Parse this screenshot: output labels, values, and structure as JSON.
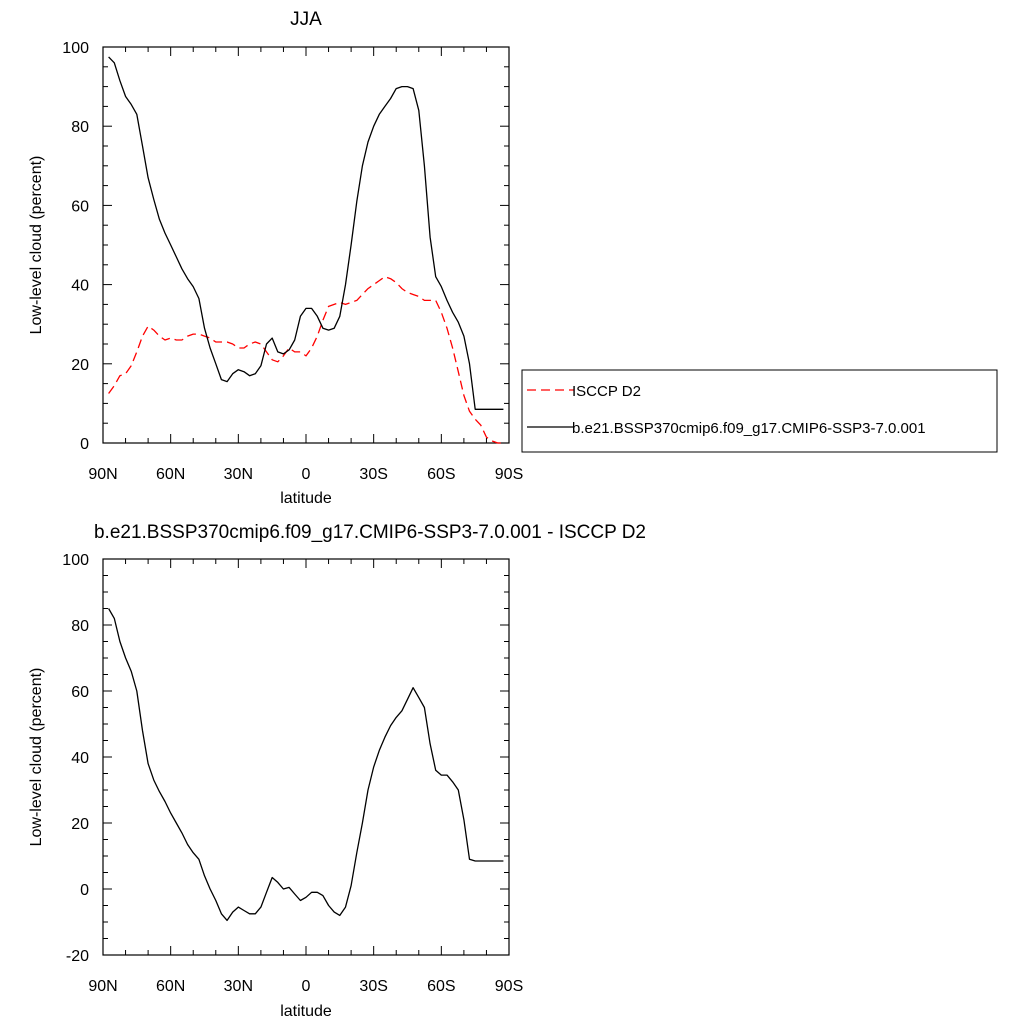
{
  "chart_data": [
    {
      "type": "line",
      "title": "JJA",
      "xlabel": "latitude",
      "ylabel": "Low-level cloud (percent)",
      "xlim": [
        -90,
        90
      ],
      "ylim": [
        0,
        100
      ],
      "x_ticks": [
        {
          "value": -90,
          "label": "90N"
        },
        {
          "value": -60,
          "label": "60N"
        },
        {
          "value": -30,
          "label": "30N"
        },
        {
          "value": 0,
          "label": "0"
        },
        {
          "value": 30,
          "label": "30S"
        },
        {
          "value": 60,
          "label": "60S"
        },
        {
          "value": 90,
          "label": "90S"
        }
      ],
      "y_ticks": [
        0,
        20,
        40,
        60,
        80,
        100
      ],
      "legend_placement": "right",
      "series": [
        {
          "name": "ISCCP D2",
          "style": "dashed",
          "color": "#ff0000",
          "x": [
            -87.5,
            -85,
            -82.5,
            -80,
            -77.5,
            -75,
            -72.5,
            -70,
            -67.5,
            -65,
            -62.5,
            -60,
            -57.5,
            -55,
            -52.5,
            -50,
            -47.5,
            -45,
            -42.5,
            -40,
            -37.5,
            -35,
            -32.5,
            -30,
            -27.5,
            -25,
            -22.5,
            -20,
            -17.5,
            -15,
            -12.5,
            -10,
            -7.5,
            -5,
            -2.5,
            0,
            2.5,
            5,
            7.5,
            10,
            12.5,
            15,
            17.5,
            20,
            22.5,
            25,
            27.5,
            30,
            32.5,
            35,
            37.5,
            40,
            42.5,
            45,
            47.5,
            50,
            52.5,
            55,
            57.5,
            60,
            62.5,
            65,
            67.5,
            70,
            72.5,
            75,
            77.5,
            80,
            82.5,
            85,
            87.5
          ],
          "values": [
            12.5,
            14.5,
            17,
            17.5,
            19.5,
            23,
            27,
            29.5,
            28.5,
            27,
            26,
            26.5,
            26,
            26,
            27,
            27.5,
            27.5,
            27,
            26.5,
            25.5,
            25.5,
            25.5,
            25,
            24,
            24,
            25,
            25.5,
            25,
            23,
            21,
            20.5,
            22,
            24,
            23,
            23,
            22,
            24,
            27,
            31,
            34.5,
            35,
            35.5,
            35,
            35.5,
            36,
            37.5,
            39,
            40,
            41,
            42,
            41.5,
            40.5,
            39,
            38,
            37.5,
            37,
            36,
            36,
            36,
            33,
            29,
            24,
            18,
            12,
            8,
            6,
            4.5,
            1.5,
            0.5,
            0,
            0
          ]
        },
        {
          "name": "b.e21.BSSP370cmip6.f09_g17.CMIP6-SSP3-7.0.001",
          "style": "solid",
          "color": "#000000",
          "x": [
            -87.5,
            -85,
            -82.5,
            -80,
            -77.5,
            -75,
            -72.5,
            -70,
            -67.5,
            -65,
            -62.5,
            -60,
            -57.5,
            -55,
            -52.5,
            -50,
            -47.5,
            -45,
            -42.5,
            -40,
            -37.5,
            -35,
            -32.5,
            -30,
            -27.5,
            -25,
            -22.5,
            -20,
            -17.5,
            -15,
            -12.5,
            -10,
            -7.5,
            -5,
            -2.5,
            0,
            2.5,
            5,
            7.5,
            10,
            12.5,
            15,
            17.5,
            20,
            22.5,
            25,
            27.5,
            30,
            32.5,
            35,
            37.5,
            40,
            42.5,
            45,
            47.5,
            50,
            52.5,
            55,
            57.5,
            60,
            62.5,
            65,
            67.5,
            70,
            72.5,
            75,
            77.5,
            80,
            82.5,
            85,
            87.5
          ],
          "values": [
            97.5,
            96,
            91.5,
            87.5,
            85.5,
            83,
            75,
            67,
            61.5,
            56.5,
            53,
            50,
            47,
            44,
            41.5,
            39.5,
            36.5,
            29,
            24,
            20,
            16,
            15.5,
            17.5,
            18.5,
            18,
            17,
            17.5,
            19.5,
            25,
            26.5,
            23,
            22.5,
            23.5,
            26,
            32,
            34,
            34,
            32,
            29,
            28.5,
            29,
            32,
            40,
            50,
            61,
            70,
            76,
            80,
            83,
            85,
            87,
            89.5,
            90,
            90,
            89.5,
            84,
            70,
            52,
            42,
            39.5,
            36,
            33,
            30.5,
            27,
            20,
            8.5,
            8.5,
            8.5,
            8.5,
            8.5,
            8.5
          ]
        }
      ]
    },
    {
      "type": "line",
      "title": "b.e21.BSSP370cmip6.f09_g17.CMIP6-SSP3-7.0.001 - ISCCP D2",
      "xlabel": "latitude",
      "ylabel": "Low-level cloud (percent)",
      "xlim": [
        -90,
        90
      ],
      "ylim": [
        -20,
        100
      ],
      "x_ticks": [
        {
          "value": -90,
          "label": "90N"
        },
        {
          "value": -60,
          "label": "60N"
        },
        {
          "value": -30,
          "label": "30N"
        },
        {
          "value": 0,
          "label": "0"
        },
        {
          "value": 30,
          "label": "30S"
        },
        {
          "value": 60,
          "label": "60S"
        },
        {
          "value": 90,
          "label": "90S"
        }
      ],
      "y_ticks": [
        -20,
        0,
        20,
        40,
        60,
        80,
        100
      ],
      "series": [
        {
          "style": "solid",
          "color": "#000000",
          "x": [
            -87.5,
            -85,
            -82.5,
            -80,
            -77.5,
            -75,
            -72.5,
            -70,
            -67.5,
            -65,
            -62.5,
            -60,
            -57.5,
            -55,
            -52.5,
            -50,
            -47.5,
            -45,
            -42.5,
            -40,
            -37.5,
            -35,
            -32.5,
            -30,
            -27.5,
            -25,
            -22.5,
            -20,
            -17.5,
            -15,
            -12.5,
            -10,
            -7.5,
            -5,
            -2.5,
            0,
            2.5,
            5,
            7.5,
            10,
            12.5,
            15,
            17.5,
            20,
            22.5,
            25,
            27.5,
            30,
            32.5,
            35,
            37.5,
            40,
            42.5,
            45,
            47.5,
            50,
            52.5,
            55,
            57.5,
            60,
            62.5,
            65,
            67.5,
            70,
            72.5,
            75,
            77.5,
            80,
            82.5,
            85,
            87.5
          ],
          "values": [
            85,
            82,
            75,
            70,
            66,
            60,
            48,
            38,
            33,
            29.5,
            26.5,
            23,
            20,
            17,
            13.5,
            11,
            9,
            4,
            0,
            -3.5,
            -7.5,
            -9.5,
            -7,
            -5.5,
            -6.5,
            -7.5,
            -7.5,
            -5.5,
            -1,
            3.5,
            2,
            0,
            0.5,
            -1.5,
            -3.5,
            -2.5,
            -1,
            -1,
            -2,
            -5,
            -7,
            -8,
            -5.5,
            1,
            11,
            20,
            30,
            37,
            42,
            46,
            49.5,
            52,
            54,
            57.5,
            61,
            58,
            55,
            44,
            36,
            34.5,
            34.5,
            32.5,
            30,
            21,
            9,
            8.5,
            8.5,
            8.5,
            8.5,
            8.5,
            8.5
          ]
        }
      ]
    }
  ]
}
